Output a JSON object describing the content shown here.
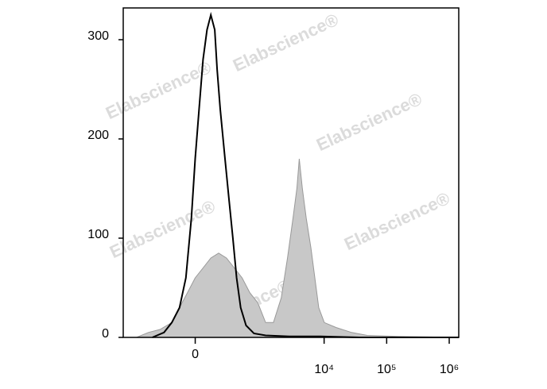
{
  "chart_data": {
    "type": "histogram-overlay",
    "watermark": "Elabscience®",
    "xscale": "biexponential",
    "xlim": [
      -1225,
      1420000
    ],
    "ylim": [
      0,
      332
    ],
    "xticks": [
      0,
      {
        "value": 10000,
        "label": "10⁴"
      },
      {
        "value": 100000,
        "label": "10⁵"
      },
      {
        "value": 1000000,
        "label": "10⁶"
      }
    ],
    "yticks": [
      0,
      100,
      200,
      300
    ],
    "series": [
      {
        "color": "#999999",
        "fill": "#c8c8c8",
        "style": "area",
        "x": [
          -745,
          -473,
          -294,
          -169,
          -106,
          -51,
          0,
          51,
          106,
          169,
          247,
          346,
          473,
          640,
          861,
          1154,
          1543,
          2062,
          2593,
          3176,
          3671,
          4002,
          4489,
          5185,
          6160,
          7117,
          8213,
          10057,
          15486,
          27492,
          48894,
          154700,
          1420000
        ],
        "values": [
          0,
          5,
          8,
          15,
          30,
          45,
          60,
          70,
          80,
          85,
          80,
          70,
          60,
          45,
          35,
          15,
          15,
          40,
          80,
          120,
          150,
          180,
          150,
          120,
          90,
          60,
          30,
          15,
          10,
          5,
          2,
          1,
          0
        ]
      },
      {
        "color": "#000000",
        "style": "line",
        "x": [
          -404,
          -247,
          -169,
          -106,
          -61,
          -25,
          0,
          25,
          51,
          78,
          106,
          136,
          156,
          184,
          231,
          275,
          326,
          380,
          447,
          552,
          745,
          1154,
          2749,
          8700,
          36500,
          1420000
        ],
        "values": [
          0,
          5,
          15,
          30,
          60,
          120,
          180,
          230,
          280,
          310,
          325,
          310,
          270,
          230,
          180,
          140,
          100,
          60,
          30,
          12,
          4,
          2,
          1,
          1,
          0,
          0
        ]
      }
    ]
  }
}
